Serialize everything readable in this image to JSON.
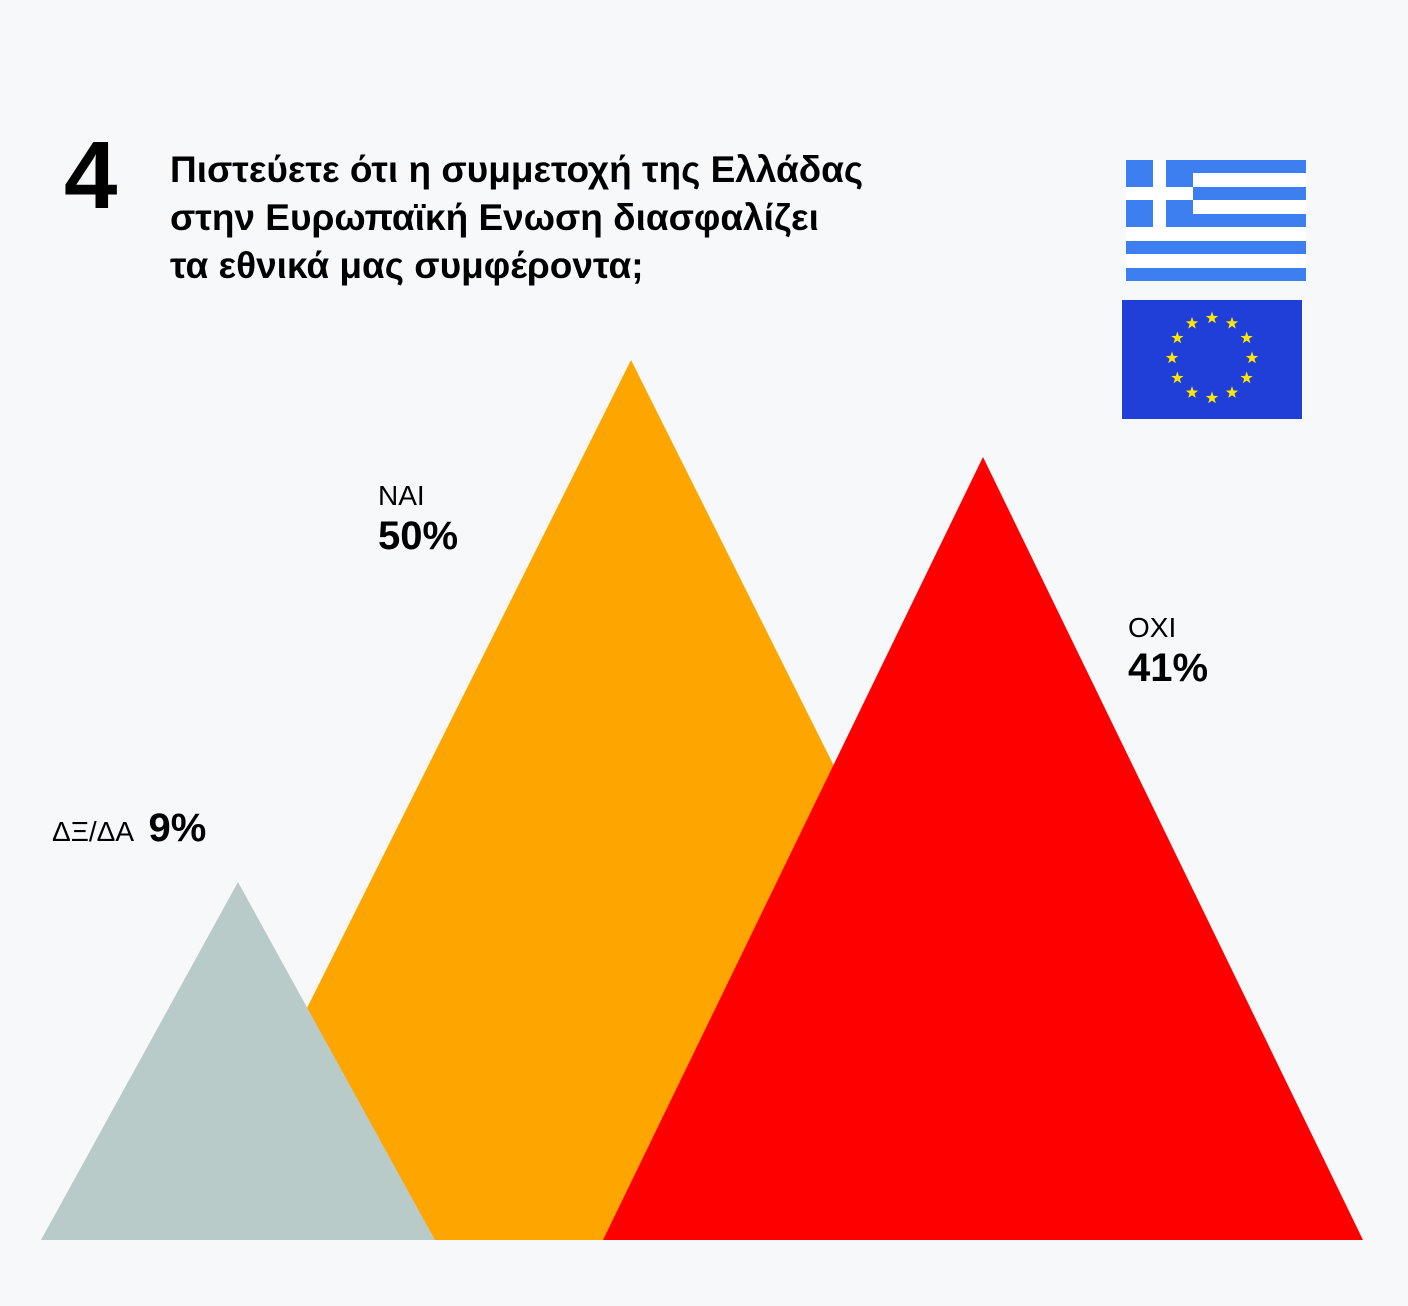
{
  "question": {
    "number": "4",
    "lines": [
      "Πιστεύετε ότι η συμμετοχή της Ελλάδας",
      "στην Ευρωπαϊκή Ενωση διασφαλίζει",
      "τα εθνικά μας συμφέροντα;"
    ]
  },
  "colors": {
    "yes": "#ffa500",
    "no": "#ff0000",
    "dk": "#b9cbc9",
    "greek_blue": "#3d7ff0",
    "eu_blue": "#1f3fd8",
    "eu_star": "#ffe600"
  },
  "icons": [
    "greek-flag-icon",
    "eu-flag-icon"
  ],
  "chart_data": {
    "type": "area",
    "categories": [
      "ΝΑΙ",
      "ΟΧΙ",
      "ΔΞ/ΔΑ"
    ],
    "values": [
      50,
      41,
      9
    ],
    "value_labels": [
      "50%",
      "41%",
      "9%"
    ],
    "unit": "%"
  }
}
